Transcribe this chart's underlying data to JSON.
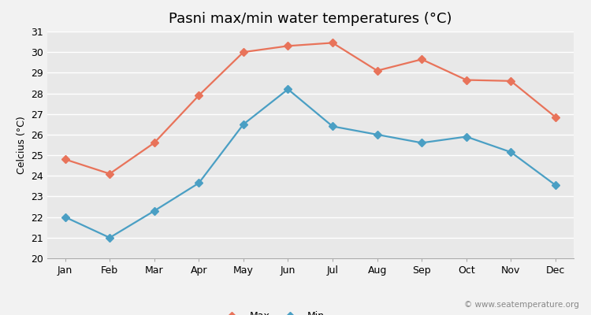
{
  "title": "Pasni max/min water temperatures (°C)",
  "ylabel": "Celcius (°C)",
  "months": [
    "Jan",
    "Feb",
    "Mar",
    "Apr",
    "May",
    "Jun",
    "Jul",
    "Aug",
    "Sep",
    "Oct",
    "Nov",
    "Dec"
  ],
  "max_temps": [
    24.8,
    24.1,
    25.6,
    27.9,
    30.0,
    30.3,
    30.45,
    29.1,
    29.65,
    28.65,
    28.6,
    26.85
  ],
  "min_temps": [
    22.0,
    21.0,
    22.3,
    23.65,
    26.5,
    28.2,
    26.4,
    26.0,
    25.6,
    25.9,
    25.15,
    23.55
  ],
  "max_color": "#e8735a",
  "min_color": "#4a9fc4",
  "fig_bg_color": "#f2f2f2",
  "plot_bg_color": "#e8e8e8",
  "grid_color": "#ffffff",
  "ylim": [
    20,
    31
  ],
  "yticks": [
    20,
    21,
    22,
    23,
    24,
    25,
    26,
    27,
    28,
    29,
    30,
    31
  ],
  "marker": "D",
  "markersize": 5,
  "linewidth": 1.6,
  "title_fontsize": 13,
  "label_fontsize": 9,
  "tick_fontsize": 9,
  "legend_fontsize": 9,
  "watermark": "© www.seatemperature.org"
}
